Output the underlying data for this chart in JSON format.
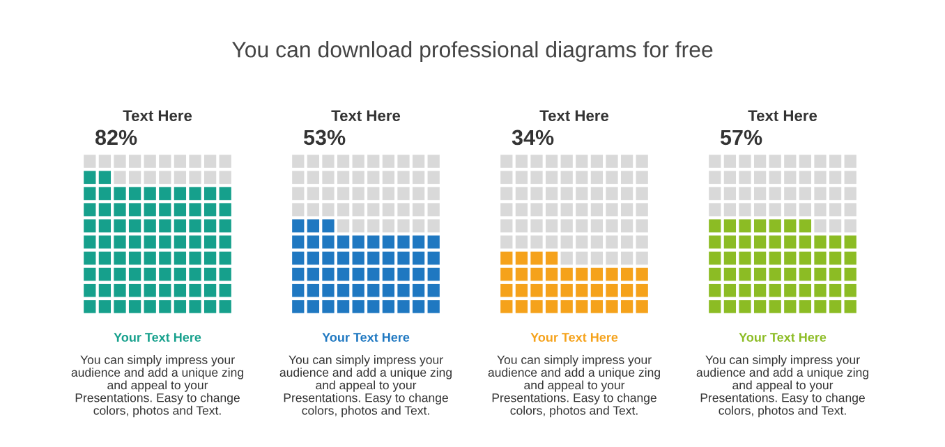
{
  "chart_data": [
    {
      "type": "other",
      "subtitle": "You can download professional diagrams for free",
      "title": "Text Here",
      "values": [
        82
      ],
      "value_labels": [
        "82%"
      ],
      "color": "#16a08c",
      "annotations": [
        "Your Text Here",
        "You can simply impress your\naudience and add a unique zing\nand appeal to your\nPresentations. Easy to change\ncolors, photos and Text."
      ]
    },
    {
      "type": "other",
      "title": "Text Here",
      "values": [
        53
      ],
      "value_labels": [
        "53%"
      ],
      "color": "#1f78c1",
      "annotations": [
        "Your Text Here",
        "You can simply impress your\naudience and add a unique zing\nand appeal to your\nPresentations. Easy to change\ncolors, photos and Text."
      ]
    },
    {
      "type": "other",
      "title": "Text Here",
      "values": [
        34
      ],
      "value_labels": [
        "34%"
      ],
      "color": "#f5a21b",
      "annotations": [
        "Your Text Here",
        "You can simply impress your\naudience and add a unique zing\nand appeal to your\nPresentations. Easy to change\ncolors, photos and Text."
      ]
    },
    {
      "type": "other",
      "title": "Text Here",
      "values": [
        57
      ],
      "value_labels": [
        "57%"
      ],
      "color": "#8cbc24",
      "annotations": [
        "Your Text Here",
        "You can simply impress your\naudience and add a unique zing\nand appeal to your\nPresentations. Easy to change\ncolors, photos and Text."
      ]
    }
  ]
}
